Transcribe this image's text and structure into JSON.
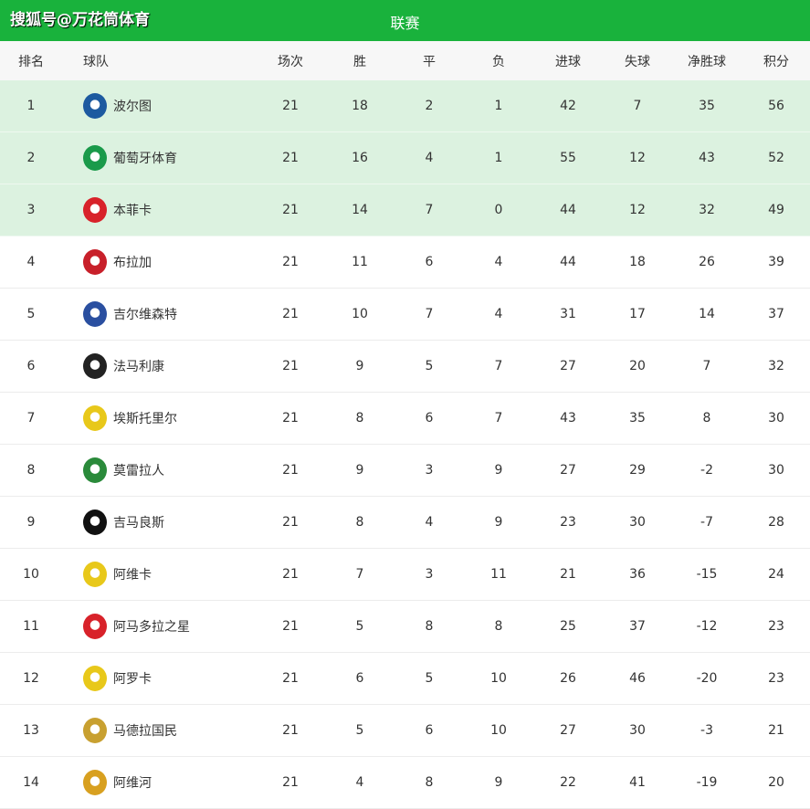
{
  "brand": "搜狐号@万花筒体育",
  "title": "联赛",
  "headers": [
    "排名",
    "球队",
    "场次",
    "胜",
    "平",
    "负",
    "进球",
    "失球",
    "净胜球",
    "积分"
  ],
  "rows": [
    {
      "rank": "1",
      "team": "波尔图",
      "logo_color": "#1d5aa0",
      "played": "21",
      "w": "18",
      "d": "2",
      "l": "1",
      "gf": "42",
      "ga": "7",
      "gd": "35",
      "pts": "56"
    },
    {
      "rank": "2",
      "team": "葡萄牙体育",
      "logo_color": "#1a9a4a",
      "played": "21",
      "w": "16",
      "d": "4",
      "l": "1",
      "gf": "55",
      "ga": "12",
      "gd": "43",
      "pts": "52"
    },
    {
      "rank": "3",
      "team": "本菲卡",
      "logo_color": "#d8222a",
      "played": "21",
      "w": "14",
      "d": "7",
      "l": "0",
      "gf": "44",
      "ga": "12",
      "gd": "32",
      "pts": "49"
    },
    {
      "rank": "4",
      "team": "布拉加",
      "logo_color": "#c8202a",
      "played": "21",
      "w": "11",
      "d": "6",
      "l": "4",
      "gf": "44",
      "ga": "18",
      "gd": "26",
      "pts": "39"
    },
    {
      "rank": "5",
      "team": "吉尔维森特",
      "logo_color": "#2a4fa0",
      "played": "21",
      "w": "10",
      "d": "7",
      "l": "4",
      "gf": "31",
      "ga": "17",
      "gd": "14",
      "pts": "37"
    },
    {
      "rank": "6",
      "team": "法马利康",
      "logo_color": "#222222",
      "played": "21",
      "w": "9",
      "d": "5",
      "l": "7",
      "gf": "27",
      "ga": "20",
      "gd": "7",
      "pts": "32"
    },
    {
      "rank": "7",
      "team": "埃斯托里尔",
      "logo_color": "#e8c81a",
      "played": "21",
      "w": "8",
      "d": "6",
      "l": "7",
      "gf": "43",
      "ga": "35",
      "gd": "8",
      "pts": "30"
    },
    {
      "rank": "8",
      "team": "莫雷拉人",
      "logo_color": "#2a8a3a",
      "played": "21",
      "w": "9",
      "d": "3",
      "l": "9",
      "gf": "27",
      "ga": "29",
      "gd": "-2",
      "pts": "30"
    },
    {
      "rank": "9",
      "team": "吉马良斯",
      "logo_color": "#111111",
      "played": "21",
      "w": "8",
      "d": "4",
      "l": "9",
      "gf": "23",
      "ga": "30",
      "gd": "-7",
      "pts": "28"
    },
    {
      "rank": "10",
      "team": "阿维卡",
      "logo_color": "#e8c81a",
      "played": "21",
      "w": "7",
      "d": "3",
      "l": "11",
      "gf": "21",
      "ga": "36",
      "gd": "-15",
      "pts": "24"
    },
    {
      "rank": "11",
      "team": "阿马多拉之星",
      "logo_color": "#d8222a",
      "played": "21",
      "w": "5",
      "d": "8",
      "l": "8",
      "gf": "25",
      "ga": "37",
      "gd": "-12",
      "pts": "23"
    },
    {
      "rank": "12",
      "team": "阿罗卡",
      "logo_color": "#e8c81a",
      "played": "21",
      "w": "6",
      "d": "5",
      "l": "10",
      "gf": "26",
      "ga": "46",
      "gd": "-20",
      "pts": "23"
    },
    {
      "rank": "13",
      "team": "马德拉国民",
      "logo_color": "#c8a030",
      "played": "21",
      "w": "5",
      "d": "6",
      "l": "10",
      "gf": "27",
      "ga": "30",
      "gd": "-3",
      "pts": "21"
    },
    {
      "rank": "14",
      "team": "阿维河",
      "logo_color": "#d8a020",
      "played": "21",
      "w": "4",
      "d": "8",
      "l": "9",
      "gf": "22",
      "ga": "41",
      "gd": "-19",
      "pts": "20"
    }
  ],
  "highlight_color": "#dcf2e0",
  "header_color": "#19b23c"
}
